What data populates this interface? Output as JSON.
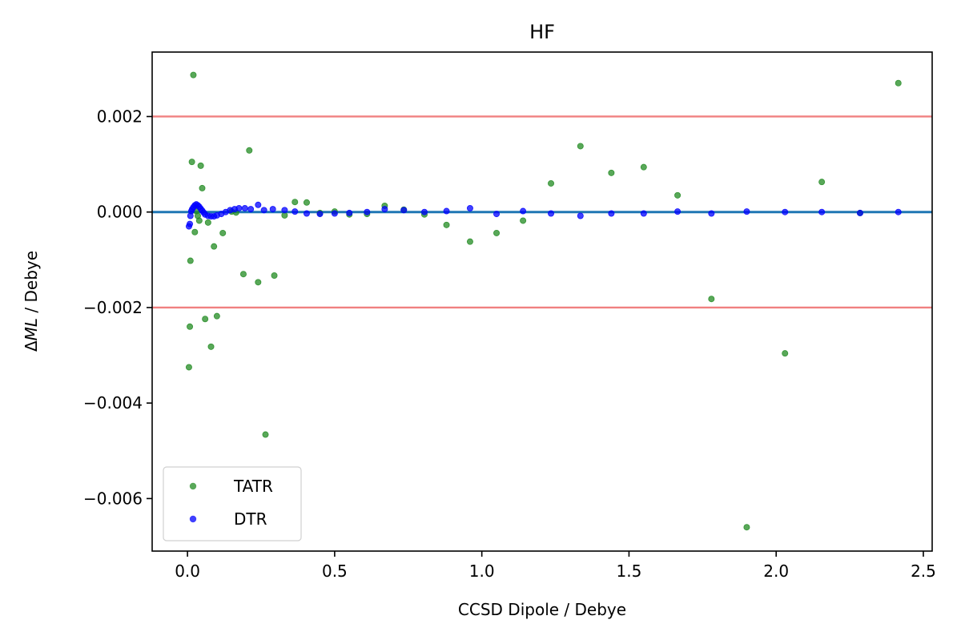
{
  "chart_data": {
    "type": "scatter",
    "title": "HF",
    "xlabel": "CCSD Dipole / Debye",
    "ylabel_prefix": "Δ",
    "ylabel_italic": "ML",
    "ylabel_suffix": " / Debye",
    "xlim": [
      -0.12,
      2.53
    ],
    "ylim": [
      -0.0071,
      0.00335
    ],
    "xticks": [
      0.0,
      0.5,
      1.0,
      1.5,
      2.0,
      2.5
    ],
    "xtick_labels": [
      "0.0",
      "0.5",
      "1.0",
      "1.5",
      "2.0",
      "2.5"
    ],
    "yticks": [
      0.002,
      0.0,
      -0.002,
      -0.004,
      -0.006
    ],
    "ytick_labels": [
      "0.002",
      "0.000",
      "−0.002",
      "−0.004",
      "−0.006"
    ],
    "grid": false,
    "legend_position": "lower-left",
    "reference_lines": [
      {
        "y": 0.002,
        "color": "#f08080"
      },
      {
        "y": 0.0,
        "color": "#1f77b4"
      },
      {
        "y": -0.002,
        "color": "#f08080"
      }
    ],
    "series": [
      {
        "name": "TATR",
        "color": "#228b22",
        "points": [
          [
            0.005,
            -0.00325
          ],
          [
            0.008,
            -0.0024
          ],
          [
            0.01,
            -0.00102
          ],
          [
            0.015,
            0.00105
          ],
          [
            0.02,
            0.00287
          ],
          [
            0.025,
            -0.00042
          ],
          [
            0.03,
            2e-05
          ],
          [
            0.035,
            -8e-05
          ],
          [
            0.04,
            -0.00018
          ],
          [
            0.045,
            0.00097
          ],
          [
            0.05,
            0.0005
          ],
          [
            0.06,
            -0.00224
          ],
          [
            0.07,
            -0.00022
          ],
          [
            0.08,
            -0.00282
          ],
          [
            0.09,
            -0.00072
          ],
          [
            0.1,
            -0.00218
          ],
          [
            0.12,
            -0.00044
          ],
          [
            0.15,
            1e-05
          ],
          [
            0.165,
            -1e-05
          ],
          [
            0.19,
            -0.0013
          ],
          [
            0.21,
            0.00129
          ],
          [
            0.24,
            -0.00147
          ],
          [
            0.265,
            -0.00466
          ],
          [
            0.295,
            -0.00133
          ],
          [
            0.33,
            -7e-05
          ],
          [
            0.365,
            0.00021
          ],
          [
            0.405,
            0.0002
          ],
          [
            0.45,
            -2e-05
          ],
          [
            0.5,
            1e-05
          ],
          [
            0.55,
            -5e-05
          ],
          [
            0.61,
            -4e-05
          ],
          [
            0.67,
            0.00013
          ],
          [
            0.735,
            5e-05
          ],
          [
            0.805,
            -5e-05
          ],
          [
            0.88,
            -0.00027
          ],
          [
            0.96,
            -0.00062
          ],
          [
            1.05,
            -0.00044
          ],
          [
            1.14,
            -0.00018
          ],
          [
            1.235,
            0.0006
          ],
          [
            1.335,
            0.00138
          ],
          [
            1.44,
            0.00082
          ],
          [
            1.55,
            0.00094
          ],
          [
            1.665,
            0.00035
          ],
          [
            1.78,
            -0.00182
          ],
          [
            1.9,
            -0.0066
          ],
          [
            2.03,
            -0.00296
          ],
          [
            2.155,
            0.00063
          ],
          [
            2.285,
            -2e-05
          ],
          [
            2.415,
            0.0027
          ]
        ]
      },
      {
        "name": "DTR",
        "color": "#0000ff",
        "points": [
          [
            0.005,
            -0.0003
          ],
          [
            0.008,
            -0.00025
          ],
          [
            0.01,
            -8e-05
          ],
          [
            0.013,
            2e-05
          ],
          [
            0.016,
            6e-05
          ],
          [
            0.02,
            0.0001
          ],
          [
            0.025,
            0.00014
          ],
          [
            0.03,
            0.00016
          ],
          [
            0.035,
            0.00014
          ],
          [
            0.04,
            0.00011
          ],
          [
            0.045,
            7e-05
          ],
          [
            0.05,
            3e-05
          ],
          [
            0.055,
            -1e-05
          ],
          [
            0.06,
            -5e-05
          ],
          [
            0.07,
            -8e-05
          ],
          [
            0.08,
            -9e-05
          ],
          [
            0.09,
            -9e-05
          ],
          [
            0.1,
            -7e-05
          ],
          [
            0.115,
            -4e-05
          ],
          [
            0.13,
            0.0
          ],
          [
            0.145,
            4e-05
          ],
          [
            0.16,
            6e-05
          ],
          [
            0.175,
            8e-05
          ],
          [
            0.195,
            8e-05
          ],
          [
            0.215,
            6e-05
          ],
          [
            0.24,
            0.00015
          ],
          [
            0.26,
            4e-05
          ],
          [
            0.29,
            6e-05
          ],
          [
            0.33,
            4e-05
          ],
          [
            0.365,
            1e-05
          ],
          [
            0.405,
            -3e-05
          ],
          [
            0.45,
            -4e-05
          ],
          [
            0.5,
            -3e-05
          ],
          [
            0.55,
            -2e-05
          ],
          [
            0.61,
            0.0
          ],
          [
            0.67,
            6e-05
          ],
          [
            0.735,
            4e-05
          ],
          [
            0.805,
            0.0
          ],
          [
            0.88,
            2e-05
          ],
          [
            0.96,
            8e-05
          ],
          [
            1.05,
            -4e-05
          ],
          [
            1.14,
            2e-05
          ],
          [
            1.235,
            -3e-05
          ],
          [
            1.335,
            -8e-05
          ],
          [
            1.44,
            -3e-05
          ],
          [
            1.55,
            -3e-05
          ],
          [
            1.665,
            1e-05
          ],
          [
            1.78,
            -3e-05
          ],
          [
            1.9,
            1e-05
          ],
          [
            2.03,
            0.0
          ],
          [
            2.155,
            0.0
          ],
          [
            2.285,
            -2e-05
          ],
          [
            2.415,
            0.0
          ]
        ]
      }
    ]
  }
}
